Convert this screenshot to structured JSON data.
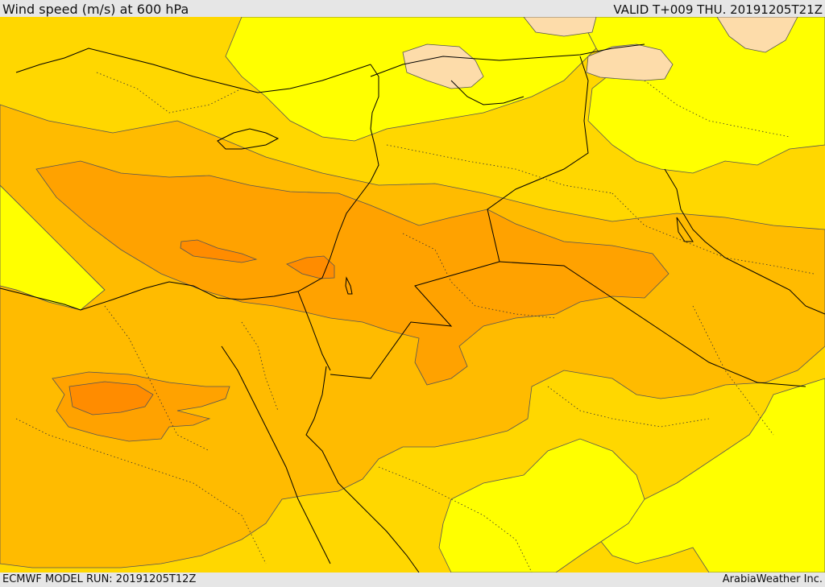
{
  "header": {
    "title": "Wind speed (m/s) at 600 hPa",
    "valid_time": "VALID T+009 THU. 20191205T21Z"
  },
  "footer": {
    "model_run": "ECMWF MODEL RUN: 20191205T12Z",
    "credit": "ArabiaWeather Inc."
  },
  "map": {
    "field": "wind speed",
    "level": "600 hPa",
    "palette": {
      "pale_peach": "#fddcaa",
      "bright_yellow": "#ffff00",
      "yellow": "#ffe100",
      "amber": "#ffd700",
      "light_orange": "#ffbb00",
      "orange": "#ffa200",
      "dark_orange": "#ff8c00",
      "border_line": "#000000",
      "contour_line": "#555555"
    }
  }
}
